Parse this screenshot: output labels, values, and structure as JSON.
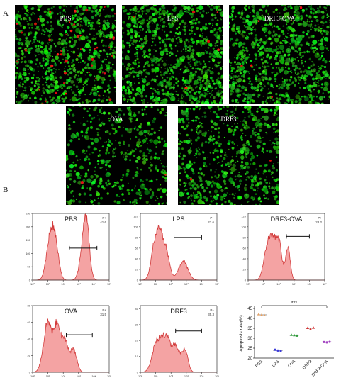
{
  "panel_a_label": "A",
  "panel_b_label": "B",
  "micrographs": [
    {
      "label": "PBS",
      "green": 900,
      "red": 60
    },
    {
      "label": "LPS",
      "green": 1100,
      "red": 8
    },
    {
      "label": "DRF3-OVA",
      "green": 1000,
      "red": 6
    },
    {
      "label": "OVA",
      "green": 500,
      "red": 2
    },
    {
      "label": "DRF3",
      "green": 700,
      "red": 2
    }
  ],
  "histograms": [
    {
      "label": "PBS",
      "gate_name": "P+",
      "gate_value": "41.6",
      "y_ticks": [
        "0",
        "50",
        "100",
        "150",
        "200",
        "250"
      ],
      "y_max": 250,
      "x_ticks": [
        "10⁰",
        "10¹",
        "10²",
        "10³",
        "10⁴",
        "10⁵"
      ],
      "peaks": [
        [
          1.2,
          0.26,
          180
        ],
        [
          1.55,
          0.2,
          80
        ],
        [
          3.5,
          0.2,
          220
        ],
        [
          3.2,
          0.2,
          60
        ]
      ],
      "gate": [
        2.4,
        4.2,
        120
      ]
    },
    {
      "label": "LPS",
      "gate_name": "P+",
      "gate_value": "23.6",
      "y_ticks": [
        "0",
        "20",
        "40",
        "60",
        "80",
        "100",
        "120"
      ],
      "y_max": 125,
      "x_ticks": [
        "10⁰",
        "10¹",
        "10²",
        "10³",
        "10⁴",
        "10⁵"
      ],
      "peaks": [
        [
          1.0,
          0.25,
          80
        ],
        [
          1.6,
          0.25,
          65
        ],
        [
          1.3,
          0.12,
          30
        ],
        [
          2.8,
          0.3,
          35
        ]
      ],
      "gate": [
        2.2,
        4.0,
        80
      ]
    },
    {
      "label": "DRF3-OVA",
      "gate_name": "P+",
      "gate_value": "28.2",
      "y_ticks": [
        "0",
        "20",
        "40",
        "60",
        "80",
        "100",
        "120"
      ],
      "y_max": 125,
      "x_ticks": [
        "10⁰",
        "10¹",
        "10²",
        "10³",
        "10⁴",
        "10⁵"
      ],
      "peaks": [
        [
          1.3,
          0.25,
          70
        ],
        [
          2.0,
          0.2,
          70
        ],
        [
          2.6,
          0.15,
          60
        ],
        [
          1.65,
          0.18,
          40
        ]
      ],
      "gate": [
        2.5,
        4.0,
        82
      ]
    },
    {
      "label": "OVA",
      "gate_name": "P+",
      "gate_value": "31.5",
      "y_ticks": [
        "0",
        "20",
        "40",
        "60",
        "80"
      ],
      "y_max": 80,
      "x_ticks": [
        "10⁰",
        "10¹",
        "10²",
        "10³",
        "10⁴",
        "10⁵"
      ],
      "peaks": [
        [
          1.0,
          0.28,
          60
        ],
        [
          1.6,
          0.2,
          50
        ],
        [
          2.1,
          0.25,
          38
        ],
        [
          2.7,
          0.2,
          25
        ]
      ],
      "gate": [
        2.2,
        3.9,
        45
      ]
    },
    {
      "label": "DRF3",
      "gate_name": "P+",
      "gate_value": "35.3",
      "y_ticks": [
        "0",
        "10",
        "20",
        "30",
        "40"
      ],
      "y_max": 42,
      "x_ticks": [
        "10⁰",
        "10¹",
        "10²",
        "10³",
        "10⁴",
        "10⁵"
      ],
      "peaks": [
        [
          1.1,
          0.3,
          20
        ],
        [
          1.7,
          0.25,
          20
        ],
        [
          2.3,
          0.25,
          16
        ],
        [
          2.9,
          0.2,
          14
        ]
      ],
      "gate": [
        2.3,
        4.0,
        26
      ]
    }
  ],
  "chart_data": {
    "type": "scatter",
    "ylabel": "Apoptosis rate(%)",
    "categories": [
      "PBS",
      "LPS",
      "OVA",
      "DRF3",
      "DRF3-OVA"
    ],
    "y_ticks": [
      20,
      25,
      30,
      35,
      40,
      45
    ],
    "ylim": [
      20,
      45
    ],
    "points": [
      [
        42.1,
        41.8,
        41.6
      ],
      [
        24.2,
        23.8,
        23.6
      ],
      [
        31.7,
        31.5,
        31.3
      ],
      [
        35.2,
        34.6,
        35.3
      ],
      [
        28.1,
        27.9,
        28.2
      ]
    ],
    "means": [
      41.8,
      23.9,
      31.5,
      35.0,
      28.1
    ],
    "colors": [
      "#e8a060",
      "#3a3ad8",
      "#2e9a3a",
      "#d83030",
      "#a040c0"
    ],
    "significance": "***"
  }
}
